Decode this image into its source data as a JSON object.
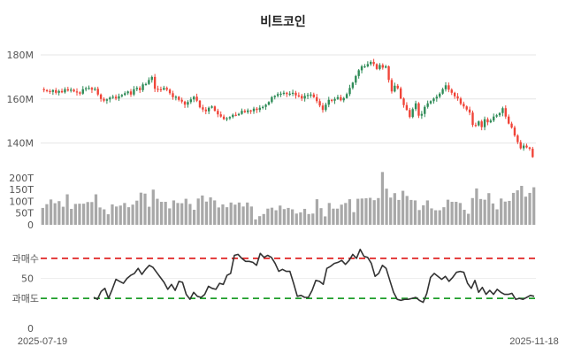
{
  "chart_data": [
    {
      "type": "candlestick",
      "title": "비트코인",
      "unit": "KRW",
      "ylim": [
        133000000,
        182000000
      ],
      "yticks": [
        {
          "v": 140000000,
          "label": "140M"
        },
        {
          "v": 160000000,
          "label": "160M"
        },
        {
          "v": 180000000,
          "label": "180M"
        }
      ],
      "x_start_label": "2025-07-19",
      "x_end_label": "2025-11-18",
      "close": [
        164.0,
        163.6,
        163.2,
        164.0,
        162.8,
        163.6,
        163.0,
        164.4,
        163.8,
        164.2,
        163.4,
        163.0,
        162.4,
        164.4,
        164.8,
        165.0,
        164.2,
        164.6,
        162.0,
        160.0,
        159.2,
        159.8,
        160.6,
        161.0,
        160.2,
        161.2,
        161.8,
        162.6,
        163.4,
        162.0,
        164.4,
        165.0,
        164.0,
        166.6,
        166.8,
        168.6,
        170.0,
        164.6,
        164.4,
        164.2,
        165.0,
        164.2,
        162.6,
        160.8,
        161.0,
        159.6,
        158.8,
        157.4,
        158.6,
        159.8,
        161.0,
        159.2,
        156.2,
        155.2,
        154.4,
        156.0,
        156.6,
        154.6,
        153.0,
        152.0,
        150.8,
        151.2,
        151.8,
        152.8,
        152.6,
        153.2,
        154.6,
        154.0,
        154.8,
        154.4,
        155.6,
        155.0,
        156.0,
        156.4,
        157.4,
        158.6,
        160.8,
        161.4,
        162.2,
        162.4,
        162.8,
        162.2,
        162.4,
        162.8,
        161.6,
        161.4,
        160.2,
        161.4,
        161.8,
        162.0,
        160.8,
        159.0,
        157.0,
        155.0,
        157.4,
        159.6,
        159.2,
        160.0,
        160.8,
        159.4,
        160.4,
        162.2,
        165.0,
        167.4,
        170.4,
        173.0,
        174.8,
        174.8,
        175.8,
        176.8,
        175.8,
        173.6,
        175.4,
        174.2,
        174.8,
        168.6,
        163.4,
        166.0,
        164.8,
        160.2,
        157.2,
        155.0,
        151.8,
        155.4,
        158.0,
        152.4,
        153.2,
        156.4,
        158.0,
        159.0,
        160.2,
        161.0,
        162.4,
        164.4,
        166.2,
        164.2,
        162.8,
        161.2,
        160.2,
        157.8,
        156.6,
        155.2,
        153.8,
        148.2,
        148.0,
        149.8,
        147.2,
        150.8,
        149.4,
        150.2,
        152.0,
        152.6,
        153.6,
        155.8,
        152.0,
        148.8,
        147.0,
        143.4,
        140.4,
        137.6,
        138.8,
        138.0,
        137.4,
        133.6
      ]
    },
    {
      "type": "bar",
      "title": "",
      "yticks": [
        {
          "v": 0,
          "label": "0"
        },
        {
          "v": 50,
          "label": "50T"
        },
        {
          "v": 100,
          "label": "100T"
        },
        {
          "v": 150,
          "label": "150T"
        },
        {
          "v": 200,
          "label": "200T"
        }
      ],
      "ylim": [
        0,
        215
      ],
      "values": [
        72,
        88,
        108,
        92,
        101,
        77,
        130,
        68,
        89,
        90,
        90,
        97,
        97,
        130,
        74,
        66,
        45,
        87,
        78,
        82,
        93,
        75,
        86,
        103,
        137,
        133,
        77,
        150,
        111,
        98,
        98,
        70,
        104,
        93,
        92,
        111,
        89,
        64,
        112,
        125,
        99,
        117,
        104,
        74,
        87,
        75,
        95,
        86,
        95,
        78,
        95,
        78,
        23,
        37,
        46,
        69,
        73,
        62,
        82,
        67,
        72,
        66,
        48,
        53,
        68,
        46,
        48,
        109,
        71,
        36,
        93,
        69,
        69,
        86,
        93,
        109,
        54,
        111,
        112,
        113,
        115,
        105,
        114,
        225,
        154,
        116,
        135,
        106,
        145,
        123,
        106,
        104,
        63,
        83,
        104,
        70,
        62,
        62,
        75,
        107,
        98,
        98,
        93,
        64,
        47,
        114,
        155,
        110,
        107,
        135,
        91,
        66,
        112,
        99,
        102,
        136,
        147,
        166,
        120,
        136,
        160
      ]
    },
    {
      "type": "line",
      "title": "",
      "ylim": [
        0,
        100
      ],
      "yticks": [
        {
          "v": 0,
          "label": "0"
        },
        {
          "v": 50,
          "label": "50"
        }
      ],
      "overbought": {
        "value": 70,
        "label": "과매수",
        "color": "#e02424"
      },
      "oversold": {
        "value": 30,
        "label": "과매도",
        "color": "#1e9e2a"
      },
      "series": [
        {
          "values": [
            31,
            29,
            37,
            40,
            30,
            39,
            49,
            47,
            45,
            50,
            53,
            55,
            60,
            54,
            59,
            63,
            61,
            56,
            51,
            46,
            39,
            44,
            38,
            47,
            46,
            34,
            29,
            36,
            32,
            31,
            34,
            42,
            40,
            39,
            45,
            44,
            53,
            55,
            73,
            74,
            70,
            67,
            67,
            66,
            63,
            75,
            71,
            73,
            71,
            65,
            57,
            59,
            57,
            57,
            45,
            32,
            33,
            31,
            31,
            38,
            48,
            47,
            44,
            60,
            62,
            65,
            66,
            68,
            64,
            68,
            74,
            70,
            79,
            72,
            71,
            65,
            52,
            55,
            63,
            60,
            48,
            36,
            29,
            28,
            29,
            29,
            30,
            31,
            28,
            26,
            35,
            51,
            55,
            52,
            49,
            52,
            47,
            51,
            56,
            57,
            56,
            45,
            40,
            48,
            36,
            41,
            34,
            38,
            34,
            39,
            36,
            34,
            34,
            35,
            29,
            30,
            29,
            31,
            33,
            32
          ]
        }
      ]
    }
  ]
}
